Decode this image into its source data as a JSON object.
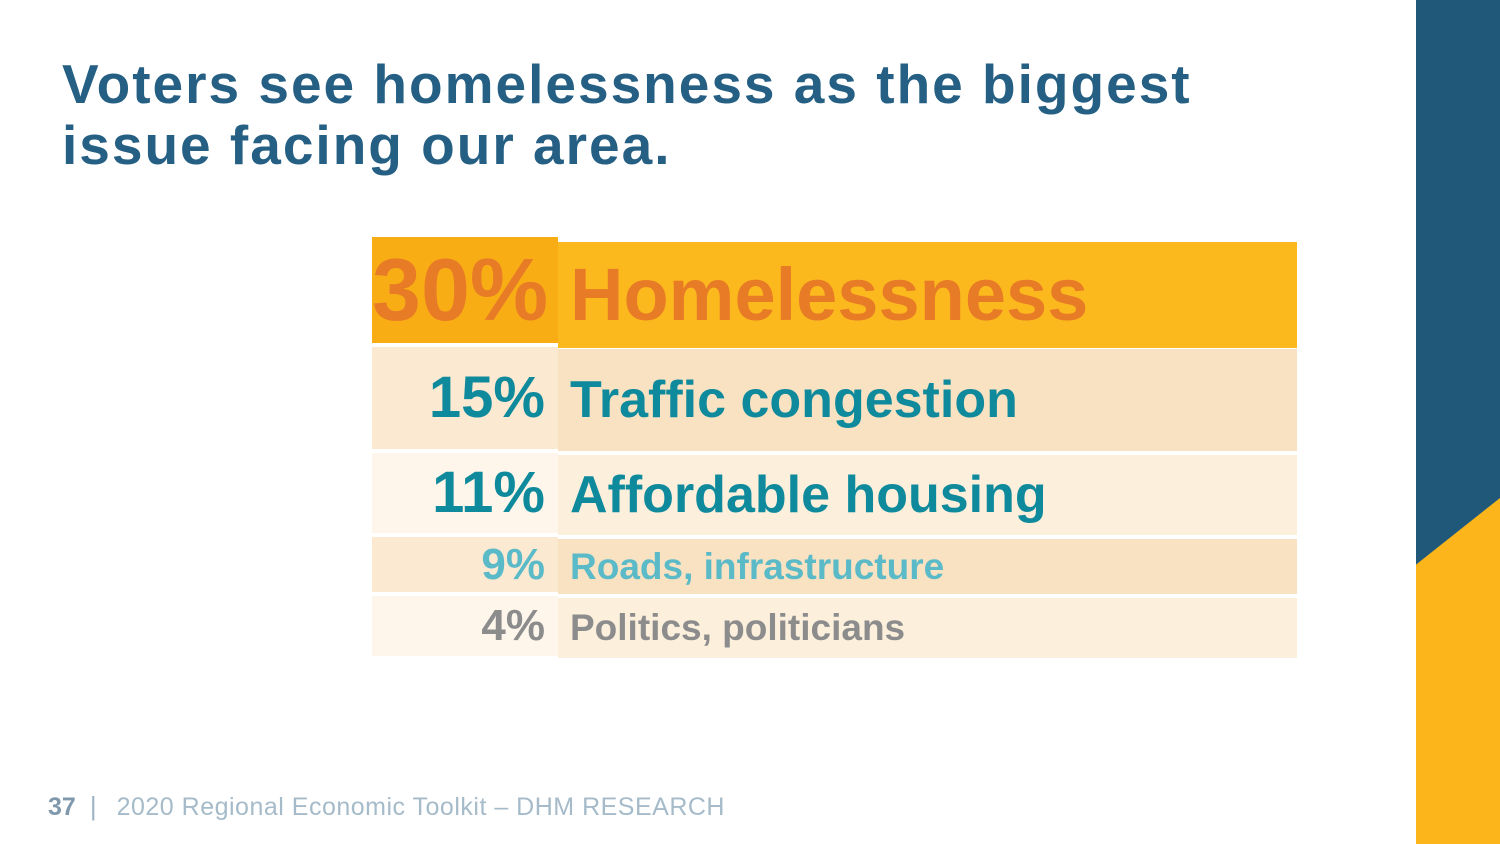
{
  "slide": {
    "title_line1": "Voters see homelessness as the biggest",
    "title_line2": "issue facing our area.",
    "footer": {
      "page_number": "37",
      "separator": "|",
      "source": "2020 Regional Economic Toolkit – DHM RESEARCH"
    }
  },
  "chart_data": {
    "type": "table",
    "title": "Voters see homelessness as the biggest issue facing our area.",
    "categories": [
      "Homelessness",
      "Traffic congestion",
      "Affordable housing",
      "Roads, infrastructure",
      "Politics, politicians"
    ],
    "values": [
      30,
      15,
      11,
      9,
      4
    ],
    "unit": "%",
    "layout_hint": "ranked rows, percentage column left, category column right, top row highlighted gold"
  },
  "rows": [
    {
      "percent": "30%",
      "label": "Homelessness",
      "value": 30,
      "text_color": "#E87B26",
      "percent_bg": "#F9AD15",
      "label_bg": "#FCB91E"
    },
    {
      "percent": "15%",
      "label": "Traffic congestion",
      "value": 15,
      "text_color": "#0F8A9C",
      "percent_bg": "#FBE9D2",
      "label_bg": "#F9E2C1"
    },
    {
      "percent": "11%",
      "label": "Affordable housing",
      "value": 11,
      "text_color": "#0F8A9C",
      "percent_bg": "#FEF6EA",
      "label_bg": "#FCF0DC"
    },
    {
      "percent": "9%",
      "label": "Roads, infrastructure",
      "value": 9,
      "text_color": "#5BBAC8",
      "percent_bg": "#FBE9D2",
      "label_bg": "#F9E2C1"
    },
    {
      "percent": "4%",
      "label": "Politics, politicians",
      "value": 4,
      "text_color": "#8C8C8C",
      "percent_bg": "#FEF6EA",
      "label_bg": "#FCF0DC"
    }
  ],
  "colors": {
    "title": "#255F83",
    "accent_gold": "#FCB61B",
    "sidebar_blue": "#20587A",
    "footer_page_number": "#8098AC",
    "footer_separator": "#9FB4C4",
    "footer_text": "#A6BBC9"
  }
}
